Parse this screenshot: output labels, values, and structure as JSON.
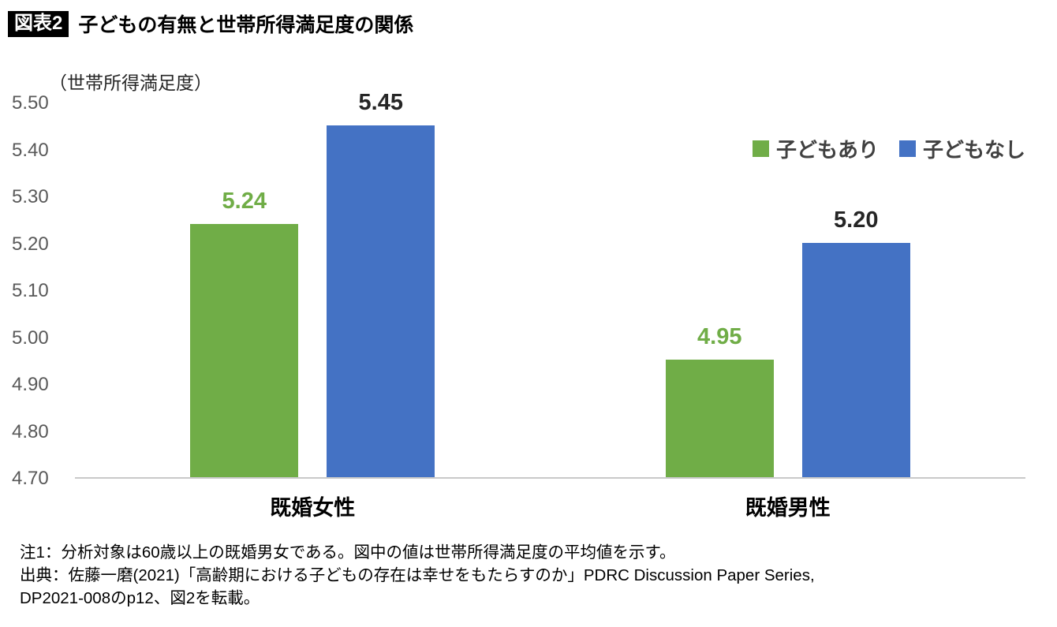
{
  "header": {
    "badge": "図表2",
    "title": "子どもの有無と世帯所得満足度の関係"
  },
  "chart_data": {
    "type": "bar",
    "title": "子どもの有無と世帯所得満足度の関係",
    "axis_title": "（世帯所得満足度）",
    "categories": [
      "既婚女性",
      "既婚男性"
    ],
    "series": [
      {
        "key": "with-children",
        "name": "子どもあり",
        "color": "#70AD47",
        "label_color": "#70AD47",
        "values": [
          5.24,
          4.95
        ]
      },
      {
        "key": "without-children",
        "name": "子どもなし",
        "color": "#4472C4",
        "label_color": "#262626",
        "values": [
          5.45,
          5.2
        ]
      }
    ],
    "ylim": [
      4.7,
      5.5
    ],
    "ytick_step": 0.1,
    "ytick_decimals": 2,
    "grid": false,
    "legend_position": "top-right",
    "axis_line_color": "#c9c9c9"
  },
  "notes": [
    "注1：分析対象は60歳以上の既婚男女である。図中の値は世帯所得満足度の平均値を示す。",
    "出典：佐藤一磨(2021)「高齢期における子どもの存在は幸せをもたらすのか」PDRC Discussion Paper Series,",
    "DP2021-008のp12、図2を転載。"
  ]
}
